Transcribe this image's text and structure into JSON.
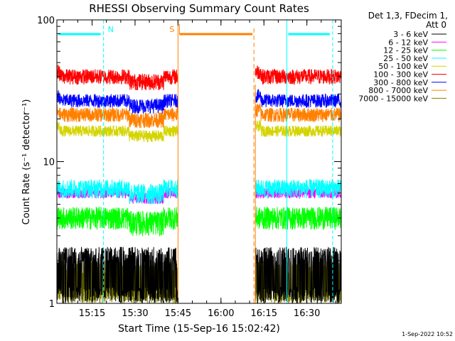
{
  "chart_data": {
    "type": "line",
    "title": "RHESSI Observing Summary Count Rates",
    "xlabel": "Start Time (15-Sep-16 15:02:42)",
    "ylabel": "Count Rate (s⁻¹ detector⁻¹)",
    "yscale": "log",
    "ylim": [
      1,
      100
    ],
    "ytick_labels": [
      "1",
      "10",
      "100"
    ],
    "xlim": [
      "15:02:42",
      "16:42:00"
    ],
    "x_tick_labels": [
      "15:15",
      "15:30",
      "15:45",
      "16:00",
      "16:15",
      "16:30"
    ],
    "legend_header": [
      "Det 1,3, FDecim 1,",
      "Att 0"
    ],
    "legend_position": "right",
    "timestamp": "1-Sep-2022 10:52",
    "data_gap": [
      "15:45",
      "16:12"
    ],
    "attenuator_states": [
      {
        "label": "N",
        "from": "15:02:42",
        "to": "15:19",
        "color": "#00ffff"
      },
      {
        "label": "S",
        "from": "15:45",
        "to": "16:12",
        "color": "#ff8000"
      },
      {
        "label": "",
        "from": "16:23",
        "to": "16:39",
        "color": "#00ffff"
      }
    ],
    "series": [
      {
        "name": "3 - 6 keV",
        "color": "#000000",
        "min_value": 1.0,
        "max_value": 2.5
      },
      {
        "name": "6 - 12 keV",
        "color": "#ff00ff",
        "min_value": 5.5,
        "max_value": 6.5
      },
      {
        "name": "12 - 25 keV",
        "color": "#00ff00",
        "min_value": 3.3,
        "max_value": 4.8
      },
      {
        "name": "25 - 50 keV",
        "color": "#00ffff",
        "min_value": 5.5,
        "max_value": 7.5
      },
      {
        "name": "50 - 100 keV",
        "color": "#d4d400",
        "min_value": 15.0,
        "max_value": 18.0
      },
      {
        "name": "100 - 300 keV",
        "color": "#ff0000",
        "min_value": 35.0,
        "max_value": 45.0
      },
      {
        "name": "300 - 800 keV",
        "color": "#0000ff",
        "min_value": 24.0,
        "max_value": 30.0
      },
      {
        "name": "800 - 7000 keV",
        "color": "#ff8000",
        "min_value": 19.0,
        "max_value": 24.0
      },
      {
        "name": "7000 - 15000 keV",
        "color": "#808000",
        "min_value": 1.0,
        "max_value": 2.0
      }
    ]
  }
}
